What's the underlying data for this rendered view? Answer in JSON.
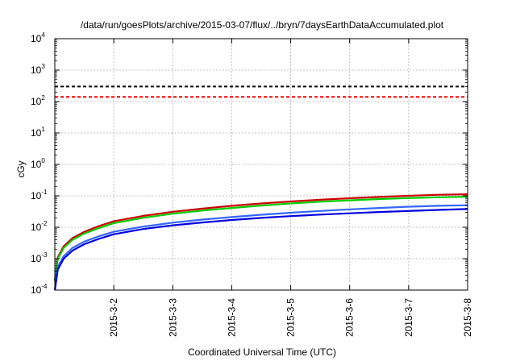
{
  "chart_data": {
    "type": "line",
    "title": "/data/run/goesPlots/archive/2015-03-07/flux/../bryn/7daysEarthDataAccumulated.plot",
    "xlabel": "Coordinated Universal Time (UTC)",
    "ylabel": "cGy",
    "yscale": "log",
    "ylim": [
      0.0001,
      10000
    ],
    "xlim": [
      0,
      7
    ],
    "grid": true,
    "x_ticks": [
      {
        "label": "2015-3-2",
        "value": 1
      },
      {
        "label": "2015-3-3",
        "value": 2
      },
      {
        "label": "2015-3-4",
        "value": 3
      },
      {
        "label": "2015-3-5",
        "value": 4
      },
      {
        "label": "2015-3-6",
        "value": 5
      },
      {
        "label": "2015-3-7",
        "value": 6
      },
      {
        "label": "2015-3-8",
        "value": 7
      }
    ],
    "y_ticks": [
      {
        "base": "10",
        "exp": "-4",
        "value": 0.0001
      },
      {
        "base": "10",
        "exp": "-3",
        "value": 0.001
      },
      {
        "base": "10",
        "exp": "-2",
        "value": 0.01
      },
      {
        "base": "10",
        "exp": "-1",
        "value": 0.1
      },
      {
        "base": "10",
        "exp": "0",
        "value": 1
      },
      {
        "base": "10",
        "exp": "1",
        "value": 10
      },
      {
        "base": "10",
        "exp": "2",
        "value": 100
      },
      {
        "base": "10",
        "exp": "3",
        "value": 1000
      },
      {
        "base": "10",
        "exp": "4",
        "value": 10000
      }
    ],
    "reference_lines": [
      {
        "value": 300,
        "color": "#000000",
        "style": "dashed"
      },
      {
        "value": 140,
        "color": "#ff0000",
        "style": "dashed"
      }
    ],
    "series": [
      {
        "color": "#cc0000",
        "points": [
          [
            0,
            0.0002
          ],
          [
            0.05,
            0.0011
          ],
          [
            0.15,
            0.0025
          ],
          [
            0.3,
            0.0045
          ],
          [
            0.5,
            0.0072
          ],
          [
            0.75,
            0.011
          ],
          [
            1,
            0.0155
          ],
          [
            1.5,
            0.023
          ],
          [
            2,
            0.031
          ],
          [
            2.5,
            0.039
          ],
          [
            3,
            0.048
          ],
          [
            3.5,
            0.057
          ],
          [
            4,
            0.066
          ],
          [
            4.5,
            0.075
          ],
          [
            5,
            0.084
          ],
          [
            5.5,
            0.092
          ],
          [
            6,
            0.1
          ],
          [
            6.5,
            0.108
          ],
          [
            7,
            0.112
          ]
        ]
      },
      {
        "color": "#00cc00",
        "points": [
          [
            0,
            0.0002
          ],
          [
            0.05,
            0.001
          ],
          [
            0.15,
            0.0022
          ],
          [
            0.3,
            0.004
          ],
          [
            0.5,
            0.0063
          ],
          [
            0.75,
            0.0095
          ],
          [
            1,
            0.0135
          ],
          [
            1.5,
            0.02
          ],
          [
            2,
            0.027
          ],
          [
            2.5,
            0.034
          ],
          [
            3,
            0.041
          ],
          [
            3.5,
            0.049
          ],
          [
            4,
            0.057
          ],
          [
            4.5,
            0.065
          ],
          [
            5,
            0.072
          ],
          [
            5.5,
            0.079
          ],
          [
            6,
            0.085
          ],
          [
            6.5,
            0.09
          ],
          [
            7,
            0.093
          ]
        ]
      },
      {
        "color": "#3366ff",
        "points": [
          [
            0,
            0.0001
          ],
          [
            0.05,
            0.00055
          ],
          [
            0.15,
            0.0012
          ],
          [
            0.3,
            0.0022
          ],
          [
            0.5,
            0.0035
          ],
          [
            0.75,
            0.0052
          ],
          [
            1,
            0.0072
          ],
          [
            1.5,
            0.0105
          ],
          [
            2,
            0.014
          ],
          [
            2.5,
            0.0175
          ],
          [
            3,
            0.021
          ],
          [
            3.5,
            0.025
          ],
          [
            4,
            0.029
          ],
          [
            4.5,
            0.033
          ],
          [
            5,
            0.037
          ],
          [
            5.5,
            0.041
          ],
          [
            6,
            0.045
          ],
          [
            6.5,
            0.048
          ],
          [
            7,
            0.05
          ]
        ]
      },
      {
        "color": "#0000dd",
        "points": [
          [
            0,
            0.0001
          ],
          [
            0.05,
            0.00045
          ],
          [
            0.15,
            0.001
          ],
          [
            0.3,
            0.0018
          ],
          [
            0.5,
            0.0029
          ],
          [
            0.75,
            0.0043
          ],
          [
            1,
            0.006
          ],
          [
            1.5,
            0.0088
          ],
          [
            2,
            0.0115
          ],
          [
            2.5,
            0.0142
          ],
          [
            3,
            0.017
          ],
          [
            3.5,
            0.0198
          ],
          [
            4,
            0.0226
          ],
          [
            4.5,
            0.0252
          ],
          [
            5,
            0.0278
          ],
          [
            5.5,
            0.0305
          ],
          [
            6,
            0.033
          ],
          [
            6.5,
            0.0355
          ],
          [
            7,
            0.038
          ]
        ]
      }
    ]
  }
}
